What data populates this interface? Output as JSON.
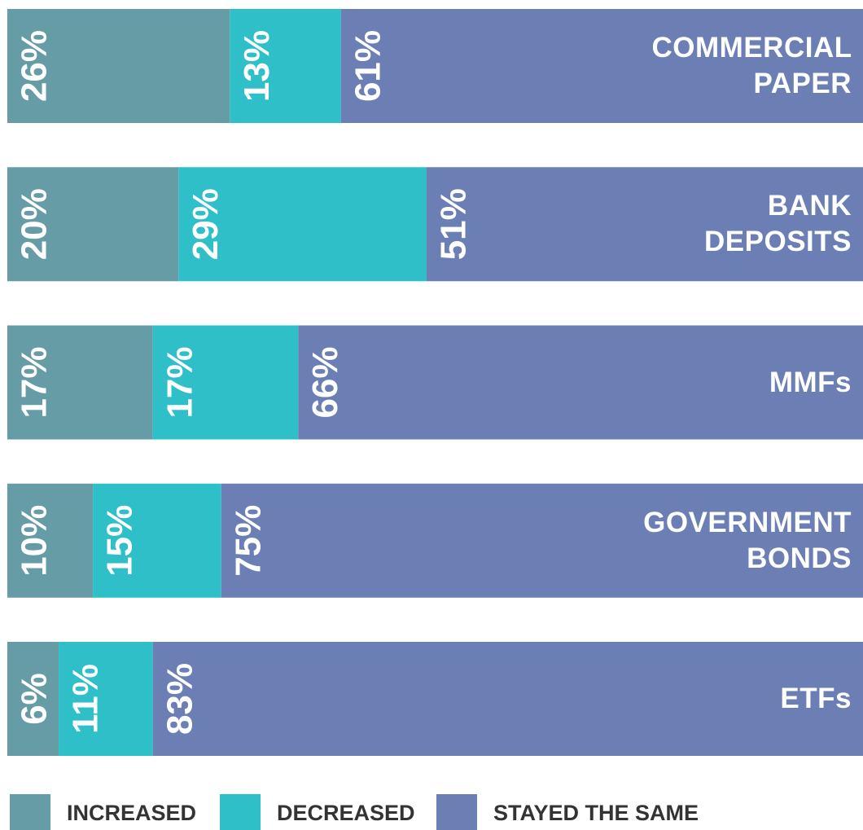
{
  "chart_data": {
    "type": "stacked_bar_horizontal",
    "categories": [
      "COMMERCIAL PAPER",
      "BANK DEPOSITS",
      "MMFs",
      "GOVERNMENT BONDS",
      "ETFs"
    ],
    "xlim": [
      0,
      100
    ],
    "series": [
      {
        "name": "INCREASED",
        "color": "#669ca6",
        "values": [
          26,
          20,
          17,
          10,
          6
        ],
        "value_labels": [
          "26%",
          "20%",
          "17%",
          "10%",
          "6%"
        ]
      },
      {
        "name": "DECREASED",
        "color": "#2ebfc8",
        "values": [
          13,
          29,
          17,
          15,
          11
        ],
        "value_labels": [
          "13%",
          "29%",
          "17%",
          "15%",
          "11%"
        ]
      },
      {
        "name": "STAYED THE SAME",
        "color": "#6c7fb4",
        "values": [
          61,
          51,
          66,
          75,
          83
        ],
        "value_labels": [
          "61%",
          "51%",
          "66%",
          "75%",
          "83%"
        ]
      }
    ]
  }
}
